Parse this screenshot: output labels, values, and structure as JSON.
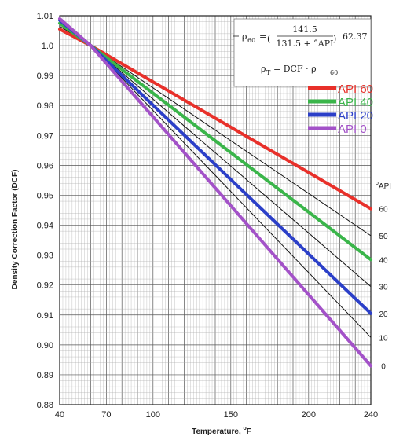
{
  "chart_data": {
    "type": "line",
    "title": "",
    "xlabel": "Temperature, °F",
    "xlabel_main": "Temperature, ",
    "xlabel_unit": "F",
    "ylabel": "Density Correction Factor (DCF)",
    "xlim": [
      40,
      240
    ],
    "ylim": [
      0.88,
      1.01
    ],
    "x_ticks": [
      "40",
      "70",
      "100",
      "150",
      "200",
      "240"
    ],
    "y_ticks": [
      "1.01",
      "1.0",
      "0.99",
      "0.98",
      "0.97",
      "0.96",
      "0.95",
      "0.94",
      "0.93",
      "0.92",
      "0.91",
      "0.90",
      "0.89",
      "0.88"
    ],
    "grid": true,
    "legend_position": "top-right",
    "equation": {
      "rho60_label": "ρ",
      "rho60_sub": "60",
      "equals": "=",
      "numerator": "141.5",
      "denominator": "131.5 + °API",
      "factor": "62.37",
      "rhoT_label": "ρ",
      "rhoT_sub": "T",
      "rhoT_rhs": "= DCF · ρ",
      "rhoT_rhs_sub": "60"
    },
    "api_axis": {
      "title_prefix": "o",
      "title": "API",
      "labels": [
        "60",
        "50",
        "40",
        "30",
        "20",
        "10",
        "0"
      ],
      "values": [
        0.9455,
        0.9365,
        0.9285,
        0.9195,
        0.9105,
        0.9025,
        0.893
      ]
    },
    "highlighted_series": [
      {
        "name": "API 60",
        "color": "#e8302a",
        "x": [
          40,
          60,
          240
        ],
        "y": [
          1.0055,
          1.0,
          0.9455
        ]
      },
      {
        "name": "API 40",
        "color": "#3ab54a",
        "x": [
          40,
          60,
          240
        ],
        "y": [
          1.0075,
          1.0,
          0.9285
        ]
      },
      {
        "name": "API 20",
        "color": "#2b3fc8",
        "x": [
          40,
          60,
          240
        ],
        "y": [
          1.0085,
          1.0,
          0.9105
        ]
      },
      {
        "name": "API 0",
        "color": "#a352c8",
        "x": [
          40,
          60,
          240
        ],
        "y": [
          1.009,
          1.0,
          0.893
        ]
      }
    ],
    "background_series": [
      {
        "api": 50,
        "x": [
          40,
          60,
          240
        ],
        "y": [
          1.0065,
          1.0,
          0.9365
        ]
      },
      {
        "api": 30,
        "x": [
          40,
          60,
          240
        ],
        "y": [
          1.008,
          1.0,
          0.9195
        ]
      },
      {
        "api": 10,
        "x": [
          40,
          60,
          240
        ],
        "y": [
          1.0088,
          1.0,
          0.9025
        ]
      }
    ]
  }
}
